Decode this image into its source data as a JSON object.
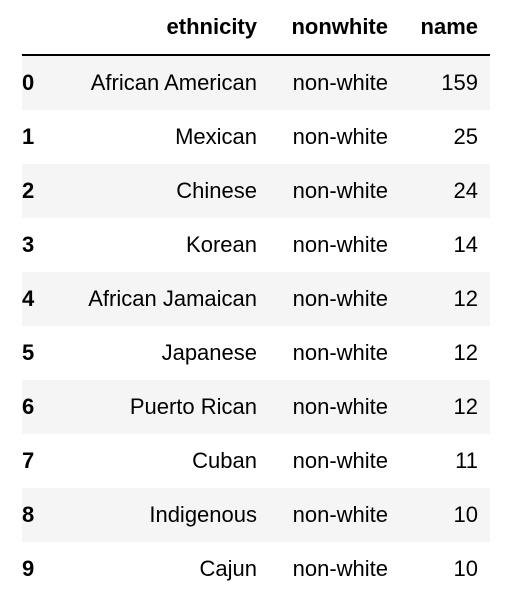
{
  "table": {
    "columns": [
      "",
      "ethnicity",
      "nonwhite",
      "name"
    ],
    "rows": [
      {
        "index": "0",
        "ethnicity": "African American",
        "nonwhite": "non-white",
        "name": "159"
      },
      {
        "index": "1",
        "ethnicity": "Mexican",
        "nonwhite": "non-white",
        "name": "25"
      },
      {
        "index": "2",
        "ethnicity": "Chinese",
        "nonwhite": "non-white",
        "name": "24"
      },
      {
        "index": "3",
        "ethnicity": "Korean",
        "nonwhite": "non-white",
        "name": "14"
      },
      {
        "index": "4",
        "ethnicity": "African Jamaican",
        "nonwhite": "non-white",
        "name": "12"
      },
      {
        "index": "5",
        "ethnicity": "Japanese",
        "nonwhite": "non-white",
        "name": "12"
      },
      {
        "index": "6",
        "ethnicity": "Puerto Rican",
        "nonwhite": "non-white",
        "name": "12"
      },
      {
        "index": "7",
        "ethnicity": "Cuban",
        "nonwhite": "non-white",
        "name": "11"
      },
      {
        "index": "8",
        "ethnicity": "Indigenous",
        "nonwhite": "non-white",
        "name": "10"
      },
      {
        "index": "9",
        "ethnicity": "Cajun",
        "nonwhite": "non-white",
        "name": "10"
      }
    ]
  },
  "colors": {
    "stripe": "#f5f5f5",
    "header_rule": "#000000"
  }
}
